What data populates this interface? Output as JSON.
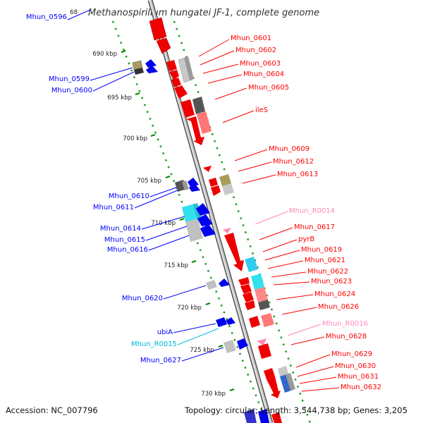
{
  "header": {
    "title": "Methanospirillum hungatei JF-1, complete genome"
  },
  "footer": {
    "accession": "Accession: NC_007796",
    "summary": "Topology: circular; Length: 3,544,738 bp; Genes: 3,205"
  },
  "colors": {
    "gene_right": "#ff0000",
    "gene_left": "#0000ff",
    "rna_label": "#ff88bb",
    "rna_left_label": "#00bbdd",
    "backbone": "#8c8c8c",
    "tick": "#008800"
  },
  "scale_ticks": [
    {
      "label": "68"
    },
    {
      "label": "690 kbp"
    },
    {
      "label": "695 kbp"
    },
    {
      "label": "700 kbp"
    },
    {
      "label": "705 kbp"
    },
    {
      "label": "710 kbp"
    },
    {
      "label": "715 kbp"
    },
    {
      "label": "720 kbp"
    },
    {
      "label": "725 kbp"
    },
    {
      "label": "730 kbp"
    }
  ],
  "left_labels": [
    {
      "text": "Mhun_0596",
      "kind": "gene"
    },
    {
      "text": "Mhun_0599",
      "kind": "gene"
    },
    {
      "text": "Mhun_0600",
      "kind": "gene"
    },
    {
      "text": "Mhun_0610",
      "kind": "gene"
    },
    {
      "text": "Mhun_0611",
      "kind": "gene"
    },
    {
      "text": "Mhun_0614",
      "kind": "gene"
    },
    {
      "text": "Mhun_0615",
      "kind": "gene"
    },
    {
      "text": "Mhun_0616",
      "kind": "gene"
    },
    {
      "text": "Mhun_0620",
      "kind": "gene"
    },
    {
      "text": "ubiA",
      "kind": "gene"
    },
    {
      "text": "Mhun_R0015",
      "kind": "rna"
    },
    {
      "text": "Mhun_0627",
      "kind": "gene"
    }
  ],
  "right_labels": [
    {
      "text": "Mhun_0601",
      "kind": "gene"
    },
    {
      "text": "Mhun_0602",
      "kind": "gene"
    },
    {
      "text": "Mhun_0603",
      "kind": "gene"
    },
    {
      "text": "Mhun_0604",
      "kind": "gene"
    },
    {
      "text": "Mhun_0605",
      "kind": "gene"
    },
    {
      "text": "ileS",
      "kind": "gene"
    },
    {
      "text": "Mhun_0609",
      "kind": "gene"
    },
    {
      "text": "Mhun_0612",
      "kind": "gene"
    },
    {
      "text": "Mhun_0613",
      "kind": "gene"
    },
    {
      "text": "Mhun_R0014",
      "kind": "rna"
    },
    {
      "text": "Mhun_0617",
      "kind": "gene"
    },
    {
      "text": "pyrB",
      "kind": "gene"
    },
    {
      "text": "Mhun_0619",
      "kind": "gene"
    },
    {
      "text": "Mhun_0621",
      "kind": "gene"
    },
    {
      "text": "Mhun_0622",
      "kind": "gene"
    },
    {
      "text": "Mhun_0623",
      "kind": "gene"
    },
    {
      "text": "Mhun_0624",
      "kind": "gene"
    },
    {
      "text": "Mhun_0626",
      "kind": "gene"
    },
    {
      "text": "Mhun_R0016",
      "kind": "rna"
    },
    {
      "text": "Mhun_0628",
      "kind": "gene"
    },
    {
      "text": "Mhun_0629",
      "kind": "gene"
    },
    {
      "text": "Mhun_0630",
      "kind": "gene"
    },
    {
      "text": "Mhun_0631",
      "kind": "gene"
    },
    {
      "text": "Mhun_0632",
      "kind": "gene"
    }
  ]
}
